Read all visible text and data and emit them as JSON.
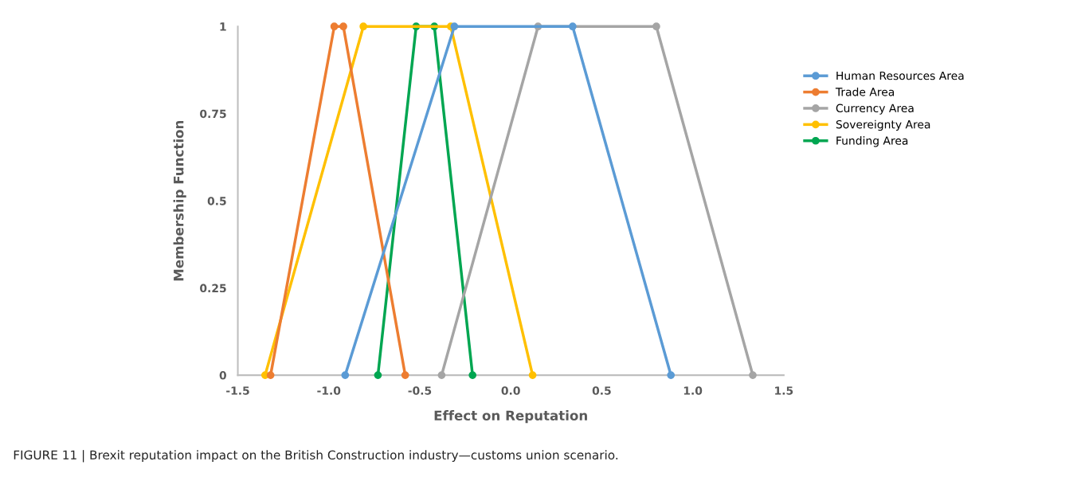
{
  "chart_data": {
    "type": "line",
    "xlabel": "Effect on Reputation",
    "ylabel": "Membership Function",
    "series": [
      {
        "name": "Human Resources Area",
        "color": "#5b9bd5",
        "x": [
          -0.91,
          -0.31,
          0.34,
          0.88
        ],
        "values": [
          0,
          1,
          1,
          0
        ]
      },
      {
        "name": "Trade Area",
        "color": "#ed7d31",
        "x": [
          -1.32,
          -0.97,
          -0.92,
          -0.58
        ],
        "values": [
          0,
          1,
          1,
          0
        ]
      },
      {
        "name": "Currency Area",
        "color": "#a5a5a5",
        "x": [
          -0.38,
          0.15,
          0.8,
          1.33
        ],
        "values": [
          0,
          1,
          1,
          0
        ]
      },
      {
        "name": "Sovereignty Area",
        "color": "#ffc000",
        "x": [
          -1.35,
          -0.81,
          -0.33,
          0.12
        ],
        "values": [
          0,
          1,
          1,
          0
        ]
      },
      {
        "name": "Funding Area",
        "color": "#00a651",
        "x": [
          -0.73,
          -0.52,
          -0.42,
          -0.21
        ],
        "values": [
          0,
          1,
          1,
          0
        ]
      }
    ],
    "xlim": [
      -1.5,
      1.5
    ],
    "xticks": [
      {
        "value": -1.5,
        "label": "-1.5"
      },
      {
        "value": -1.0,
        "label": "-1.0"
      },
      {
        "value": -0.5,
        "label": "-0.5"
      },
      {
        "value": 0,
        "label": "0.0"
      },
      {
        "value": 0.5,
        "label": "0.5"
      },
      {
        "value": 1.0,
        "label": "1.0"
      },
      {
        "value": 1.5,
        "label": "1.5"
      }
    ],
    "ylim": [
      0,
      1
    ],
    "yticks": [
      0,
      0.25,
      0.5,
      0.75,
      1
    ],
    "marker": "circle",
    "grid": false,
    "legend": "right",
    "annotations": [
      "FIGURE 11 | Brexit reputation impact on the British Construction industry—customs union scenario."
    ]
  }
}
